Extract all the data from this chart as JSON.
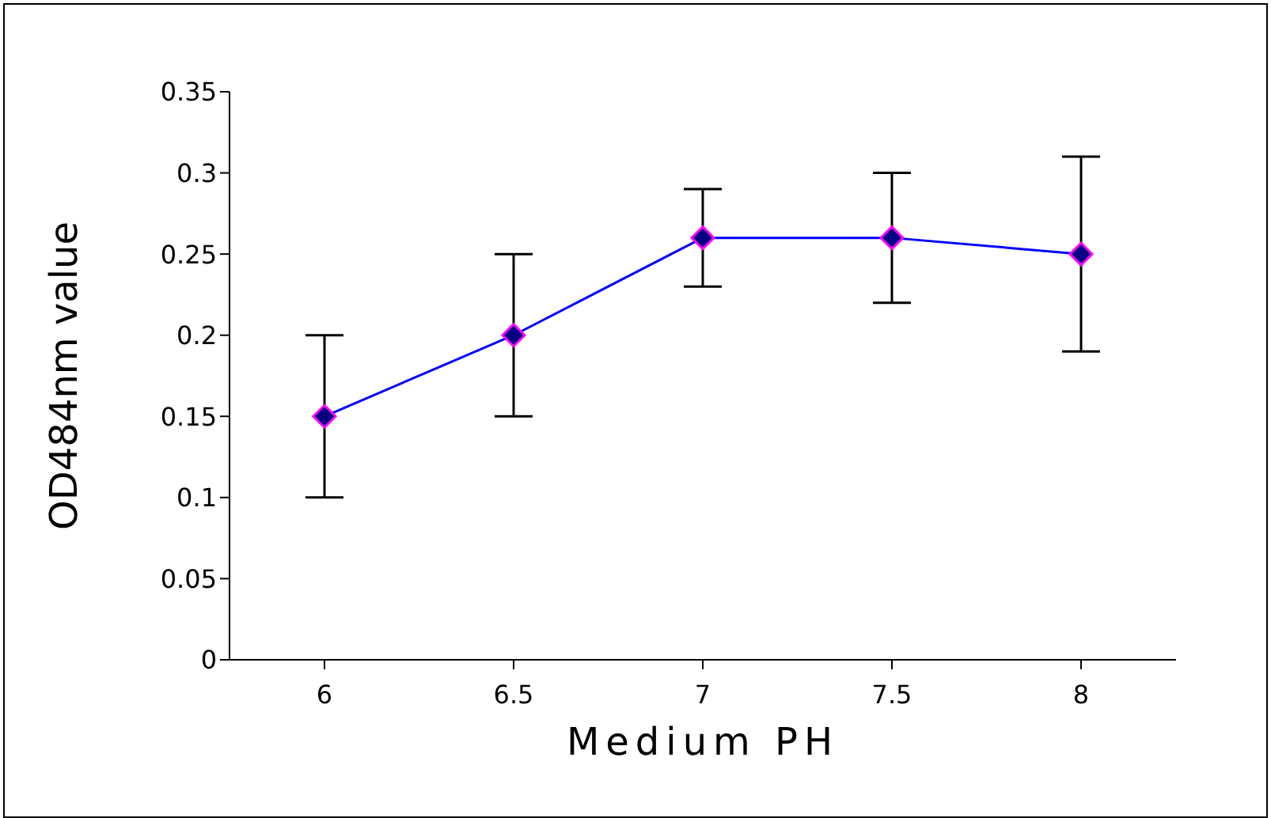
{
  "chart_data": {
    "type": "line",
    "xlabel": "Medium PH",
    "ylabel": "OD484nm value",
    "categories": [
      "6",
      "6.5",
      "7",
      "7.5",
      "8"
    ],
    "values": [
      0.15,
      0.2,
      0.26,
      0.26,
      0.25
    ],
    "errors": [
      0.05,
      0.05,
      [
        0.23,
        0.29
      ],
      [
        0.22,
        0.3
      ],
      [
        0.19,
        0.31
      ]
    ],
    "color": "#0000ff",
    "marker": "diamond",
    "ylim": [
      0,
      0.35
    ],
    "yticks": [
      0,
      0.05,
      0.1,
      0.15,
      0.2,
      0.25,
      0.3,
      0.35
    ],
    "grid": false,
    "legend": false
  }
}
